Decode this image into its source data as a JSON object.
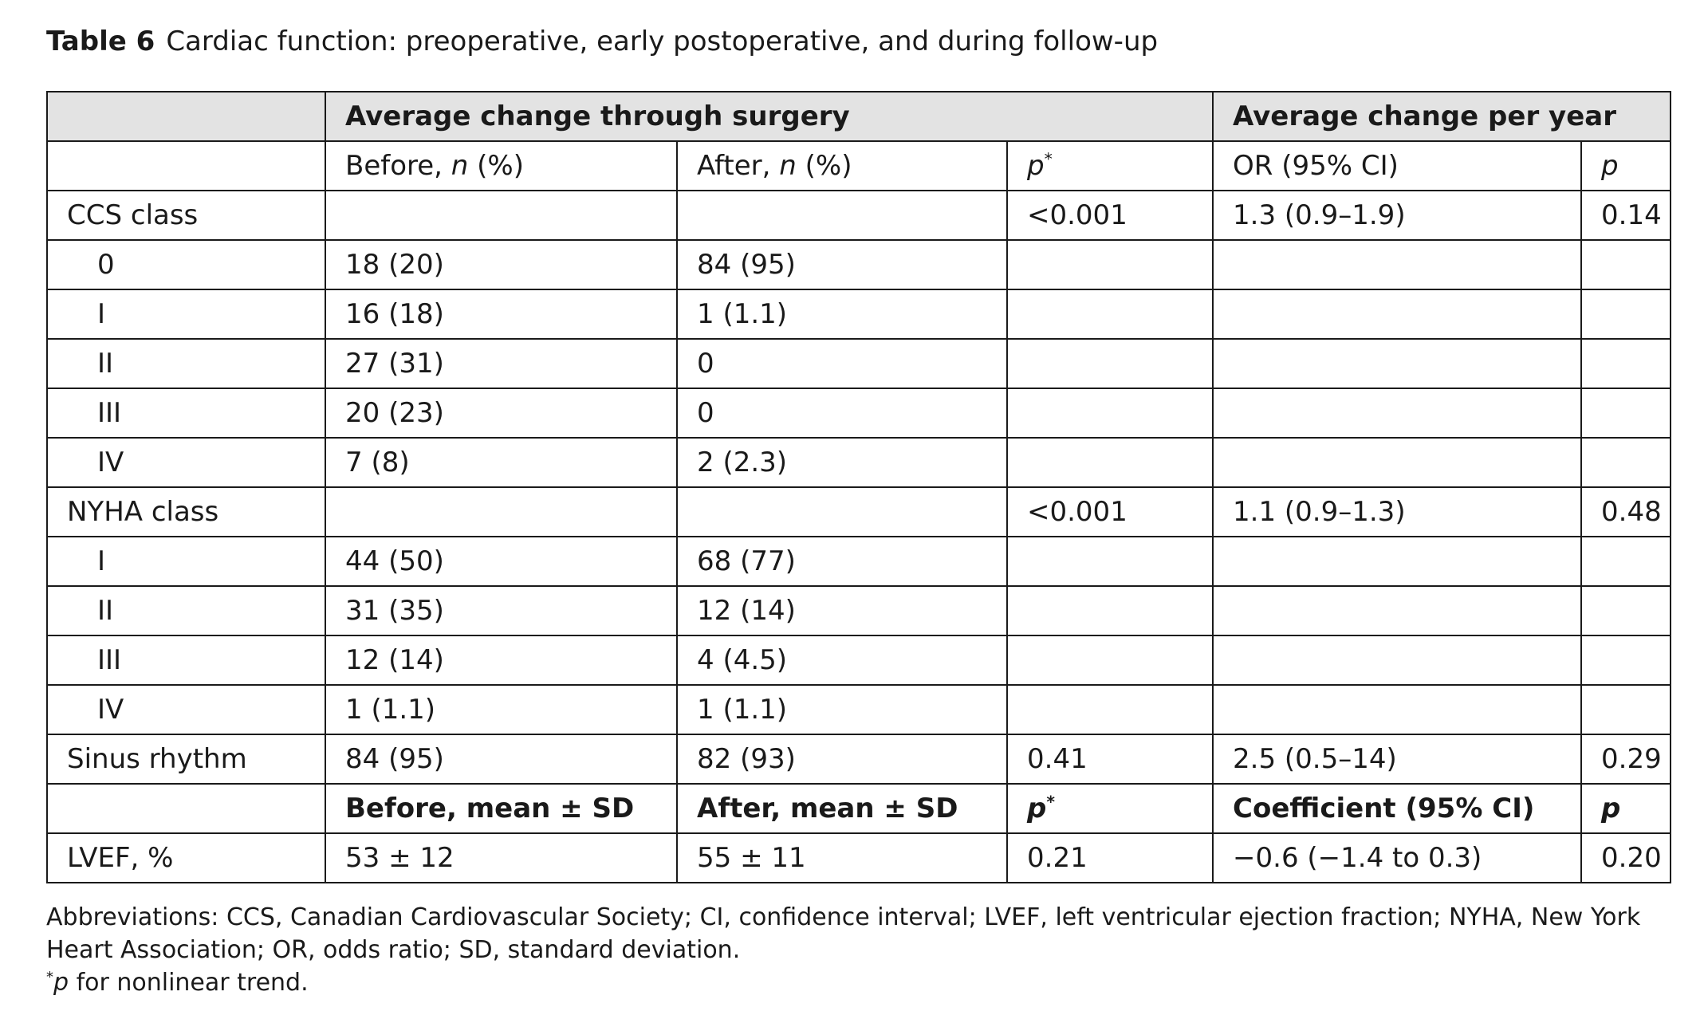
{
  "caption": {
    "label": "Table 6",
    "text": "Cardiac function: preoperative, early postoperative, and during follow-up"
  },
  "header": {
    "group_surgery": "Average change through surgery",
    "group_year": "Average change per year",
    "before_label": "Before, ",
    "before_italic": "n",
    "before_suffix": " (%)",
    "after_label": "After, ",
    "after_italic": "n",
    "after_suffix": " (%)",
    "p_label": "p",
    "p_mark": "*",
    "or_label": "OR (95% CI)",
    "p2_label": "p"
  },
  "rows": [
    {
      "label": "CCS class",
      "before": "",
      "after": "",
      "p": "<0.001",
      "or": "1.3 (0.9–1.9)",
      "p2": "0.14"
    },
    {
      "label": "0",
      "before": "18 (20)",
      "after": "84 (95)",
      "p": "",
      "or": "",
      "p2": ""
    },
    {
      "label": "I",
      "before": "16 (18)",
      "after": "1 (1.1)",
      "p": "",
      "or": "",
      "p2": ""
    },
    {
      "label": "II",
      "before": "27 (31)",
      "after": "0",
      "p": "",
      "or": "",
      "p2": ""
    },
    {
      "label": "III",
      "before": "20 (23)",
      "after": "0",
      "p": "",
      "or": "",
      "p2": ""
    },
    {
      "label": "IV",
      "before": "7 (8)",
      "after": "2 (2.3)",
      "p": "",
      "or": "",
      "p2": ""
    },
    {
      "label": "NYHA class",
      "before": "",
      "after": "",
      "p": "<0.001",
      "or": "1.1 (0.9–1.3)",
      "p2": "0.48"
    },
    {
      "label": "I",
      "before": "44 (50)",
      "after": "68 (77)",
      "p": "",
      "or": "",
      "p2": ""
    },
    {
      "label": "II",
      "before": "31 (35)",
      "after": "12 (14)",
      "p": "",
      "or": "",
      "p2": ""
    },
    {
      "label": "III",
      "before": "12 (14)",
      "after": "4 (4.5)",
      "p": "",
      "or": "",
      "p2": ""
    },
    {
      "label": "IV",
      "before": "1 (1.1)",
      "after": "1 (1.1)",
      "p": "",
      "or": "",
      "p2": ""
    },
    {
      "label": "Sinus rhythm",
      "before": "84 (95)",
      "after": "82 (93)",
      "p": "0.41",
      "or": "2.5 (0.5–14)",
      "p2": "0.29"
    }
  ],
  "subheader": {
    "before": "Before, mean ± SD",
    "after": "After, mean ± SD",
    "p_label": "p",
    "p_mark": "*",
    "coef": "Coefficient (95% CI)",
    "p2_label": "p"
  },
  "lvef": {
    "label": "LVEF, %",
    "before": "53 ± 12",
    "after": "55 ± 11",
    "p": "0.21",
    "coef": "−0.6 (−1.4 to 0.3)",
    "p2": "0.20"
  },
  "footnotes": {
    "abbreviations": "Abbreviations: CCS, Canadian Cardiovascular Society; CI, confidence interval; LVEF, left ventricular ejection fraction; NYHA, New York Heart Association; OR, odds ratio; SD, standard deviation.",
    "mark": "*",
    "note_italic": "p",
    "note_text": " for nonlinear trend."
  }
}
